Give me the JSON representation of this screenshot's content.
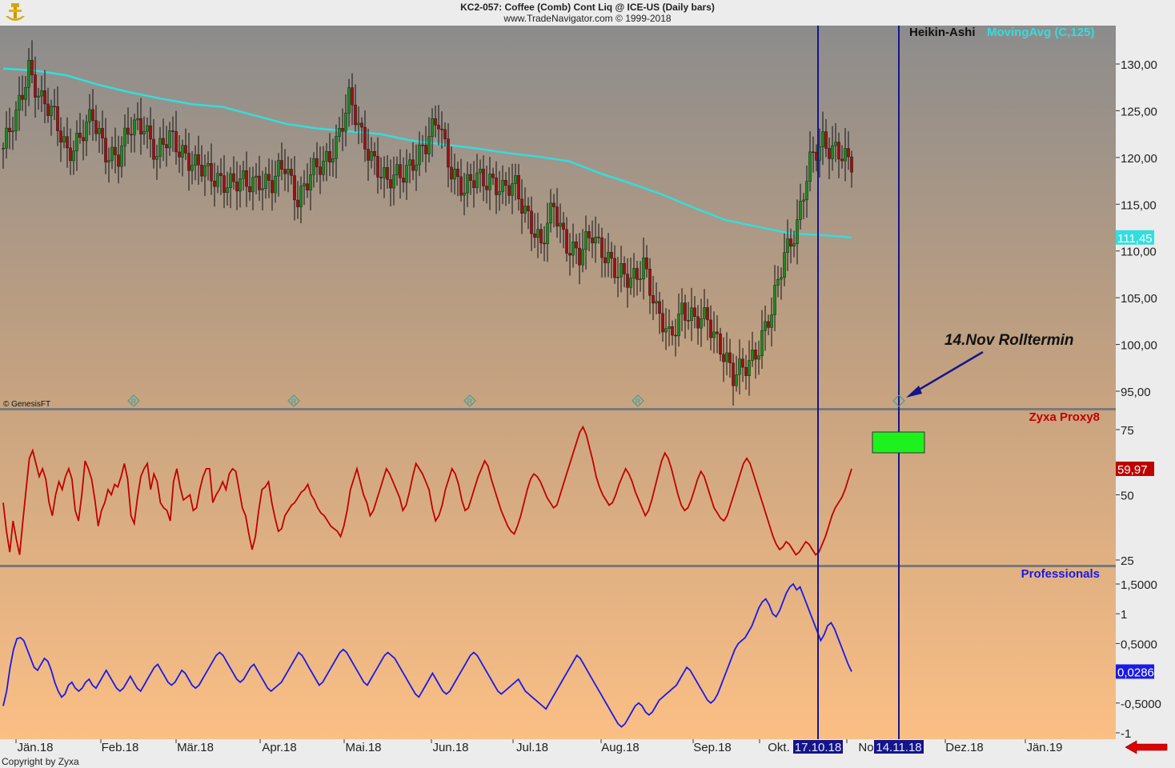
{
  "header": {
    "title": "KC2-057:  Coffee (Comb) Cont Liq @ ICE-US  (Daily bars)",
    "subtitle": "www.TradeNavigator.com © 1999-2018"
  },
  "footer": {
    "copyright": "Copyright by Zyxa",
    "genesis": "© GenesisFT"
  },
  "colors": {
    "bg_top": "#8c8c8c",
    "bg_bottom": "#fbbf85",
    "candle_up": "#1e8a1e",
    "candle_down": "#9c1212",
    "ma": "#32dede",
    "proxy": "#c00000",
    "professionals": "#1a1ae6",
    "vline": "#15158a",
    "green_box": "#1df21d",
    "arrow_red": "#e00000"
  },
  "icons": [
    "logo-icon",
    "r-marker-icon",
    "red-arrow-icon"
  ],
  "chart_data": [
    {
      "type": "candlestick",
      "name": "price",
      "legend": [
        "Heikin-Ashi",
        "MovingAvg (C,125)"
      ],
      "ylim": [
        93,
        134
      ],
      "yticks": [
        "130,00",
        "125,00",
        "120,00",
        "115,00",
        "110,00",
        "105,00",
        "100,00",
        "95,00"
      ],
      "ma_last_label": "111,45",
      "annotation": "14.Nov Rolltermin",
      "close_anchors": [
        [
          0,
          121
        ],
        [
          4,
          124
        ],
        [
          8,
          130
        ],
        [
          12,
          126
        ],
        [
          16,
          124
        ],
        [
          20,
          121
        ],
        [
          24,
          122
        ],
        [
          28,
          124
        ],
        [
          32,
          121
        ],
        [
          36,
          120
        ],
        [
          40,
          123
        ],
        [
          44,
          124
        ],
        [
          48,
          120
        ],
        [
          52,
          122
        ],
        [
          56,
          121
        ],
        [
          60,
          119
        ],
        [
          64,
          118
        ],
        [
          68,
          118
        ],
        [
          72,
          117
        ],
        [
          76,
          117
        ],
        [
          80,
          118
        ],
        [
          84,
          117
        ],
        [
          88,
          119
        ],
        [
          92,
          116
        ],
        [
          96,
          118
        ],
        [
          100,
          119
        ],
        [
          104,
          122
        ],
        [
          108,
          126
        ],
        [
          112,
          122
        ],
        [
          116,
          120
        ],
        [
          120,
          117
        ],
        [
          124,
          118
        ],
        [
          128,
          120
        ],
        [
          132,
          121
        ],
        [
          136,
          124
        ],
        [
          140,
          119
        ],
        [
          144,
          116
        ],
        [
          148,
          118
        ],
        [
          152,
          118
        ],
        [
          156,
          116
        ],
        [
          160,
          117
        ],
        [
          164,
          114
        ],
        [
          168,
          110
        ],
        [
          172,
          115
        ],
        [
          176,
          111
        ],
        [
          180,
          109
        ],
        [
          184,
          112
        ],
        [
          188,
          110
        ],
        [
          192,
          107
        ],
        [
          196,
          107
        ],
        [
          200,
          109
        ],
        [
          204,
          103
        ],
        [
          208,
          101
        ],
        [
          212,
          104
        ],
        [
          216,
          102
        ],
        [
          220,
          103
        ],
        [
          224,
          100
        ],
        [
          228,
          96
        ],
        [
          232,
          98
        ],
        [
          236,
          100
        ],
        [
          240,
          103
        ],
        [
          244,
          110
        ],
        [
          248,
          113
        ],
        [
          252,
          119
        ],
        [
          256,
          122
        ],
        [
          260,
          121
        ],
        [
          264,
          119
        ]
      ],
      "ma_values": [
        129.5,
        129.3,
        128.8,
        127.8,
        127.0,
        126.3,
        125.7,
        125.4,
        124.5,
        123.6,
        123.1,
        122.8,
        122.5,
        121.8,
        121.4,
        121.0,
        120.5,
        120.1,
        119.6,
        118.3,
        117.2,
        116.0,
        114.6,
        113.3,
        112.6,
        111.9,
        111.7,
        111.45
      ],
      "bar_count": 266,
      "x_tick_labels": [
        "Jän.18",
        "Feb.18",
        "Mär.18",
        "Apr.18",
        "Mai.18",
        "Jun.18",
        "Jul.18",
        "Aug.18",
        "Sep.18",
        "Okt.",
        "No",
        "Dez.18",
        "Jän.19"
      ],
      "highlighted_dates": [
        "17.10.18",
        "14.11.18"
      ]
    },
    {
      "type": "line",
      "name": "Zyxa Proxy8",
      "ylim": [
        20,
        85
      ],
      "yticks": [
        "75",
        "50",
        "25"
      ],
      "last_label": "59,97",
      "values": [
        47,
        36,
        28,
        40,
        33,
        27,
        40,
        52,
        64,
        67,
        62,
        57,
        60,
        56,
        47,
        42,
        50,
        55,
        52,
        57,
        60,
        56,
        44,
        40,
        50,
        63,
        60,
        56,
        48,
        38,
        44,
        47,
        52,
        50,
        54,
        53,
        57,
        62,
        56,
        42,
        39,
        49,
        57,
        60,
        62,
        52,
        58,
        55,
        47,
        45,
        44,
        40,
        55,
        60,
        53,
        48,
        49,
        50,
        44,
        45,
        52,
        57,
        60,
        60,
        47,
        50,
        52,
        55,
        52,
        58,
        60,
        59,
        52,
        45,
        42,
        35,
        29,
        34,
        44,
        52,
        53,
        55,
        47,
        41,
        36,
        37,
        42,
        44,
        46,
        47,
        49,
        51,
        52,
        54,
        50,
        48,
        45,
        43,
        42,
        40,
        38,
        37,
        36,
        34,
        38,
        44,
        52,
        56,
        60,
        55,
        50,
        47,
        42,
        44,
        48,
        52,
        56,
        60,
        58,
        55,
        52,
        49,
        44,
        46,
        51,
        57,
        62,
        60,
        58,
        55,
        52,
        45,
        40,
        42,
        46,
        52,
        56,
        60,
        58,
        54,
        48,
        44,
        45,
        49,
        53,
        57,
        60,
        63,
        61,
        56,
        52,
        48,
        44,
        41,
        38,
        36,
        35,
        38,
        42,
        47,
        52,
        56,
        58,
        57,
        55,
        52,
        49,
        47,
        45,
        46,
        50,
        54,
        58,
        62,
        66,
        70,
        74,
        76,
        73,
        68,
        63,
        57,
        53,
        50,
        48,
        46,
        47,
        50,
        54,
        57,
        60,
        58,
        55,
        51,
        48,
        45,
        42,
        44,
        48,
        53,
        58,
        63,
        66,
        64,
        60,
        55,
        50,
        46,
        44,
        45,
        48,
        52,
        56,
        59,
        57,
        53,
        49,
        45,
        43,
        41,
        40,
        42,
        46,
        50,
        54,
        58,
        62,
        64,
        62,
        58,
        54,
        50,
        46,
        42,
        38,
        34,
        31,
        29,
        30,
        32,
        31,
        29,
        27,
        28,
        30,
        32,
        31,
        29,
        27,
        28,
        31,
        34,
        38,
        42,
        45,
        47,
        49,
        52,
        56,
        59.97
      ]
    },
    {
      "type": "line",
      "name": "Professionals",
      "ylim": [
        -1.1,
        1.75
      ],
      "yticks": [
        "1,5000",
        "1",
        "0,5000",
        "-0,5000",
        "-1"
      ],
      "last_label": "0,0286",
      "values": [
        -0.55,
        -0.3,
        0.1,
        0.4,
        0.58,
        0.6,
        0.55,
        0.4,
        0.25,
        0.1,
        0.05,
        0.15,
        0.25,
        0.2,
        0.05,
        -0.15,
        -0.3,
        -0.4,
        -0.35,
        -0.2,
        -0.15,
        -0.25,
        -0.3,
        -0.25,
        -0.15,
        -0.1,
        -0.2,
        -0.25,
        -0.15,
        -0.05,
        0.05,
        -0.05,
        -0.15,
        -0.25,
        -0.3,
        -0.25,
        -0.15,
        -0.05,
        -0.15,
        -0.25,
        -0.3,
        -0.2,
        -0.1,
        0.0,
        0.1,
        0.15,
        0.05,
        -0.05,
        -0.15,
        -0.2,
        -0.15,
        -0.05,
        0.05,
        0.0,
        -0.1,
        -0.2,
        -0.25,
        -0.2,
        -0.1,
        0.0,
        0.1,
        0.2,
        0.3,
        0.35,
        0.3,
        0.2,
        0.1,
        0.0,
        -0.1,
        -0.15,
        -0.1,
        0.0,
        0.1,
        0.15,
        0.05,
        -0.05,
        -0.15,
        -0.25,
        -0.3,
        -0.25,
        -0.2,
        -0.15,
        -0.05,
        0.05,
        0.15,
        0.25,
        0.35,
        0.3,
        0.2,
        0.1,
        0.0,
        -0.1,
        -0.2,
        -0.15,
        -0.05,
        0.05,
        0.15,
        0.25,
        0.35,
        0.4,
        0.35,
        0.25,
        0.15,
        0.05,
        -0.05,
        -0.15,
        -0.2,
        -0.1,
        0.0,
        0.1,
        0.2,
        0.3,
        0.35,
        0.3,
        0.25,
        0.15,
        0.05,
        -0.05,
        -0.15,
        -0.25,
        -0.35,
        -0.4,
        -0.3,
        -0.2,
        -0.1,
        0.0,
        -0.1,
        -0.2,
        -0.3,
        -0.35,
        -0.3,
        -0.2,
        -0.1,
        0.0,
        0.1,
        0.2,
        0.3,
        0.35,
        0.3,
        0.2,
        0.1,
        0.0,
        -0.1,
        -0.2,
        -0.3,
        -0.35,
        -0.3,
        -0.25,
        -0.2,
        -0.15,
        -0.1,
        -0.2,
        -0.3,
        -0.35,
        -0.4,
        -0.45,
        -0.5,
        -0.55,
        -0.6,
        -0.5,
        -0.4,
        -0.3,
        -0.2,
        -0.1,
        0.0,
        0.1,
        0.2,
        0.3,
        0.25,
        0.15,
        0.05,
        -0.05,
        -0.15,
        -0.25,
        -0.35,
        -0.45,
        -0.55,
        -0.65,
        -0.75,
        -0.85,
        -0.9,
        -0.85,
        -0.75,
        -0.65,
        -0.55,
        -0.5,
        -0.55,
        -0.65,
        -0.7,
        -0.65,
        -0.55,
        -0.45,
        -0.4,
        -0.35,
        -0.3,
        -0.25,
        -0.2,
        -0.1,
        0.0,
        0.1,
        0.05,
        -0.05,
        -0.15,
        -0.25,
        -0.35,
        -0.45,
        -0.5,
        -0.45,
        -0.35,
        -0.2,
        -0.05,
        0.1,
        0.25,
        0.4,
        0.5,
        0.55,
        0.6,
        0.7,
        0.8,
        0.95,
        1.1,
        1.2,
        1.25,
        1.15,
        1.0,
        0.95,
        1.05,
        1.2,
        1.35,
        1.45,
        1.5,
        1.4,
        1.45,
        1.3,
        1.15,
        1.0,
        0.85,
        0.7,
        0.55,
        0.65,
        0.8,
        0.85,
        0.75,
        0.6,
        0.45,
        0.3,
        0.15,
        0.0286
      ]
    }
  ]
}
